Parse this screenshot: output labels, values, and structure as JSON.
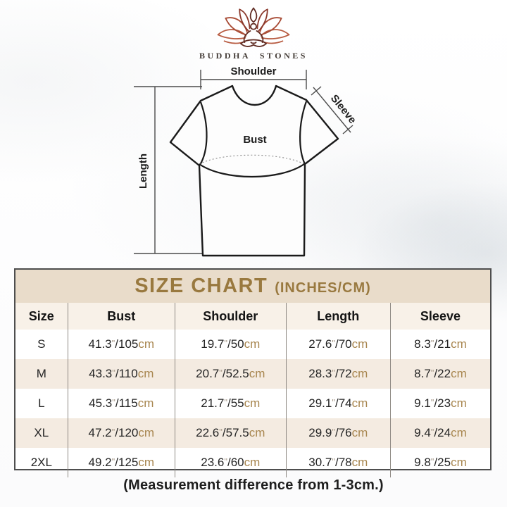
{
  "brand": {
    "name": "BUDDHA STONES",
    "logo_icon": "lotus-meditation-icon"
  },
  "diagram": {
    "labels": {
      "shoulder": "Shoulder",
      "sleeve": "Sleeve",
      "bust": "Bust",
      "length": "Length"
    }
  },
  "size_chart": {
    "title": "SIZE CHART",
    "title_suffix": "(INCHES/CM)",
    "columns": [
      "Size",
      "Bust",
      "Shoulder",
      "Length",
      "Sleeve"
    ],
    "inch_mark": "\"",
    "separator": "/",
    "unit_cm": "cm",
    "rows": [
      {
        "size": "S",
        "measurements": [
          {
            "in": "41.3",
            "cm": "105"
          },
          {
            "in": "19.7",
            "cm": "50"
          },
          {
            "in": "27.6",
            "cm": "70"
          },
          {
            "in": "8.3",
            "cm": "21"
          }
        ]
      },
      {
        "size": "M",
        "measurements": [
          {
            "in": "43.3",
            "cm": "110"
          },
          {
            "in": "20.7",
            "cm": "52.5"
          },
          {
            "in": "28.3",
            "cm": "72"
          },
          {
            "in": "8.7",
            "cm": "22"
          }
        ]
      },
      {
        "size": "L",
        "measurements": [
          {
            "in": "45.3",
            "cm": "115"
          },
          {
            "in": "21.7",
            "cm": "55"
          },
          {
            "in": "29.1",
            "cm": "74"
          },
          {
            "in": "9.1",
            "cm": "23"
          }
        ]
      },
      {
        "size": "XL",
        "measurements": [
          {
            "in": "47.2",
            "cm": "120"
          },
          {
            "in": "22.6",
            "cm": "57.5"
          },
          {
            "in": "29.9",
            "cm": "76"
          },
          {
            "in": "9.4",
            "cm": "24"
          }
        ]
      },
      {
        "size": "2XL",
        "measurements": [
          {
            "in": "49.2",
            "cm": "125"
          },
          {
            "in": "23.6",
            "cm": "60"
          },
          {
            "in": "30.7",
            "cm": "78"
          },
          {
            "in": "9.8",
            "cm": "25"
          }
        ]
      }
    ]
  },
  "footnote": "(Measurement difference from 1-3cm.)",
  "colors": {
    "accent_gold": "#99793f",
    "unit_tan": "#a8864f",
    "title_bar_bg": "#e9dcca",
    "header_row_bg": "#f8f1e8",
    "row_alt_bg": "#f4ebe1",
    "table_border": "#4e4e4e",
    "logo_red_outer": "#b85c42",
    "logo_red_mid": "#a84b35",
    "logo_red_inner": "#8a382b",
    "logo_figure": "#5f2b22",
    "text_dark": "#1e1e1e"
  }
}
